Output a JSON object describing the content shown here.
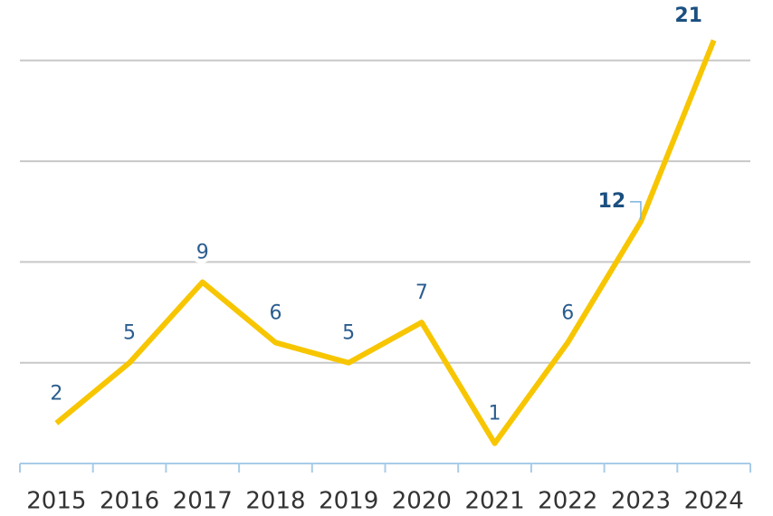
{
  "chart_data": {
    "type": "line",
    "categories": [
      "2015",
      "2016",
      "2017",
      "2018",
      "2019",
      "2020",
      "2021",
      "2022",
      "2023",
      "2024"
    ],
    "values": [
      2,
      5,
      9,
      6,
      5,
      7,
      1,
      6,
      12,
      21
    ],
    "color": "#f7c600",
    "highlight": [
      8,
      9
    ],
    "ylim": [
      0,
      23
    ],
    "yticks": [
      0,
      5,
      10,
      15,
      20
    ],
    "grid": true
  }
}
